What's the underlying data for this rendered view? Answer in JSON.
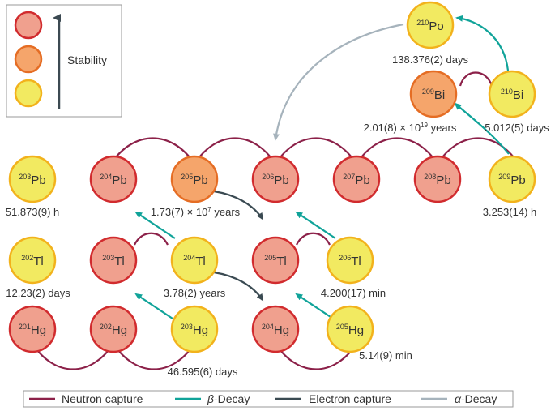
{
  "colors": {
    "least_stable_fill": "#f0a08e",
    "least_stable_stroke": "#d12b2e",
    "mid_stable_fill": "#f5a56b",
    "mid_stable_stroke": "#e56d24",
    "most_stable_fill": "#f2ea61",
    "most_stable_stroke": "#f2b21c",
    "neutron_capture": "#8c2149",
    "beta_decay": "#10a399",
    "electron_capture": "#3a4a52",
    "alpha_decay": "#a6b3bc",
    "stability_arrow": "#3c4a52"
  },
  "legend_box": {
    "stability_label": "Stability"
  },
  "nuclides": {
    "po210": {
      "mass": "210",
      "symbol": "Po",
      "halflife": "138.376(2) days"
    },
    "bi209": {
      "mass": "209",
      "symbol": "Bi",
      "halflife_base": "2.01(8) × 10",
      "halflife_exp": "19",
      "halflife_unit": " years"
    },
    "bi210": {
      "mass": "210",
      "symbol": "Bi",
      "halflife": "5.012(5) days"
    },
    "pb203": {
      "mass": "203",
      "symbol": "Pb",
      "halflife": "51.873(9) h"
    },
    "pb204": {
      "mass": "204",
      "symbol": "Pb"
    },
    "pb205": {
      "mass": "205",
      "symbol": "Pb",
      "halflife_base": "1.73(7) × 10",
      "halflife_exp": "7",
      "halflife_unit": " years"
    },
    "pb206": {
      "mass": "206",
      "symbol": "Pb"
    },
    "pb207": {
      "mass": "207",
      "symbol": "Pb"
    },
    "pb208": {
      "mass": "208",
      "symbol": "Pb"
    },
    "pb209": {
      "mass": "209",
      "symbol": "Pb",
      "halflife": "3.253(14) h"
    },
    "tl202": {
      "mass": "202",
      "symbol": "Tl",
      "halflife": "12.23(2) days"
    },
    "tl203": {
      "mass": "203",
      "symbol": "Tl"
    },
    "tl204": {
      "mass": "204",
      "symbol": "Tl",
      "halflife": "3.78(2) years"
    },
    "tl205": {
      "mass": "205",
      "symbol": "Tl"
    },
    "tl206": {
      "mass": "206",
      "symbol": "Tl",
      "halflife": "4.200(17) min"
    },
    "hg201": {
      "mass": "201",
      "symbol": "Hg"
    },
    "hg202": {
      "mass": "202",
      "symbol": "Hg"
    },
    "hg203": {
      "mass": "203",
      "symbol": "Hg",
      "halflife": "46.595(6) days"
    },
    "hg204": {
      "mass": "204",
      "symbol": "Hg"
    },
    "hg205": {
      "mass": "205",
      "symbol": "Hg",
      "halflife": "5.14(9) min"
    }
  },
  "legend": {
    "neutron_capture": "Neutron capture",
    "beta_symbol": "β",
    "beta_rest": "-Decay",
    "electron_capture": "Electron capture",
    "alpha_symbol": "α",
    "alpha_rest": "-Decay"
  }
}
